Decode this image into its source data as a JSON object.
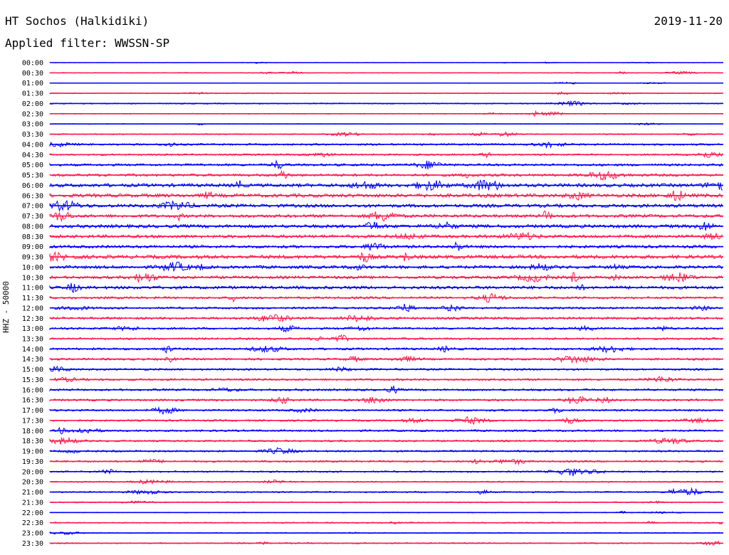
{
  "header": {
    "station": "HT Sochos (Halkidiki)",
    "filter": "Applied filter: WWSSN-SP",
    "date": "2019-11-20"
  },
  "chart_data": {
    "type": "line",
    "title": "HT Sochos (Halkidiki)",
    "subtitle": "Applied filter: WWSSN-SP",
    "ylabel": "HHZ - 50000",
    "xlabel": "",
    "grid": false,
    "legend": "none",
    "colors": [
      "#0000ff",
      "#ff1a4d"
    ],
    "rows": [
      "00:00",
      "00:30",
      "01:00",
      "01:30",
      "02:00",
      "02:30",
      "03:00",
      "03:30",
      "04:00",
      "04:30",
      "05:00",
      "05:30",
      "06:00",
      "06:30",
      "07:00",
      "07:30",
      "08:00",
      "08:30",
      "09:00",
      "09:30",
      "10:00",
      "10:30",
      "11:00",
      "11:30",
      "12:00",
      "12:30",
      "13:00",
      "13:30",
      "14:00",
      "14:30",
      "15:00",
      "15:30",
      "16:00",
      "16:30",
      "17:00",
      "17:30",
      "18:00",
      "18:30",
      "19:00",
      "19:30",
      "20:00",
      "20:30",
      "21:00",
      "21:30",
      "22:00",
      "22:30",
      "23:00",
      "23:30"
    ],
    "noise_level": [
      0.3,
      0.6,
      0.4,
      0.7,
      0.9,
      0.6,
      0.5,
      0.9,
      1.4,
      1.3,
      1.8,
      2.0,
      2.6,
      2.8,
      2.6,
      2.4,
      2.6,
      2.4,
      2.2,
      2.8,
      2.4,
      2.2,
      2.4,
      1.8,
      1.6,
      1.8,
      1.6,
      1.6,
      1.7,
      1.6,
      1.5,
      1.6,
      1.6,
      1.6,
      1.5,
      1.4,
      1.5,
      1.4,
      1.4,
      1.4,
      1.2,
      1.0,
      1.1,
      0.9,
      0.6,
      0.9,
      0.7,
      1.0
    ]
  }
}
